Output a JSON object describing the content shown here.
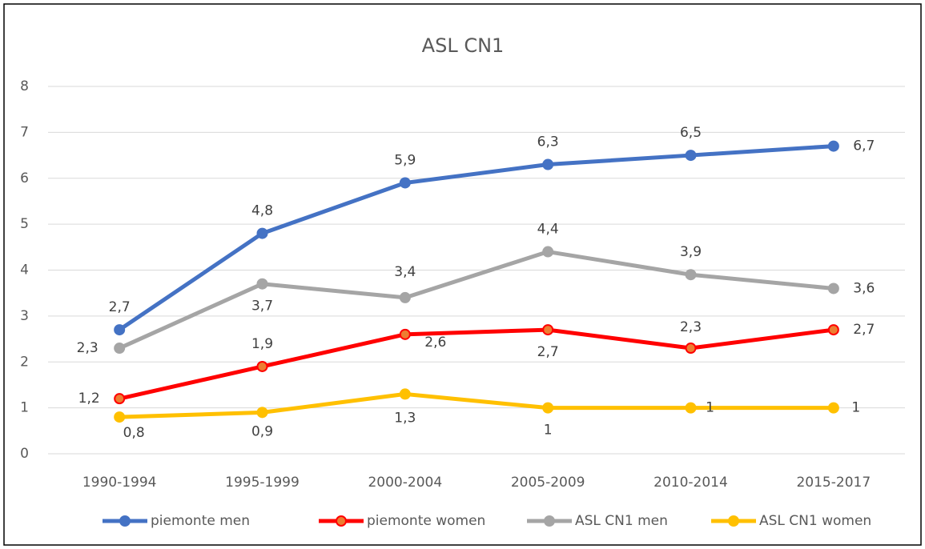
{
  "chart_data": {
    "type": "line",
    "title": "ASL CN1",
    "categories": [
      "1990-1994",
      "1995-1999",
      "2000-2004",
      "2005-2009",
      "2010-2014",
      "2015-2017"
    ],
    "series": [
      {
        "name": "piemonte men",
        "color": "#4472c4",
        "values": [
          2.7,
          4.8,
          5.9,
          6.3,
          6.5,
          6.7
        ],
        "value_labels": [
          "2,7",
          "4,8",
          "5,9",
          "6,3",
          "6,5",
          "6,7"
        ]
      },
      {
        "name": "piemonte women",
        "color": "#ff0000",
        "marker_color": "#ed7d31",
        "values": [
          1.2,
          1.9,
          2.6,
          2.7,
          2.3,
          2.7
        ],
        "value_labels": [
          "1,2",
          "1,9",
          "2,6",
          "2,7",
          "2,3",
          "2,7"
        ]
      },
      {
        "name": "ASL CN1 men",
        "color": "#a5a5a5",
        "values": [
          2.3,
          3.7,
          3.4,
          4.4,
          3.9,
          3.6
        ],
        "value_labels": [
          "2,3",
          "3,7",
          "3,4",
          "4,4",
          "3,9",
          "3,6"
        ]
      },
      {
        "name": "ASL CN1 women",
        "color": "#ffc000",
        "values": [
          0.8,
          0.9,
          1.3,
          1,
          1,
          1
        ],
        "value_labels": [
          "0,8",
          "0,9",
          "1,3",
          "1",
          "1",
          "1"
        ]
      }
    ],
    "ylim": [
      0,
      8
    ],
    "yticks": [
      0,
      1,
      2,
      3,
      4,
      5,
      6,
      7,
      8
    ],
    "grid": true,
    "legend": "bottom"
  }
}
